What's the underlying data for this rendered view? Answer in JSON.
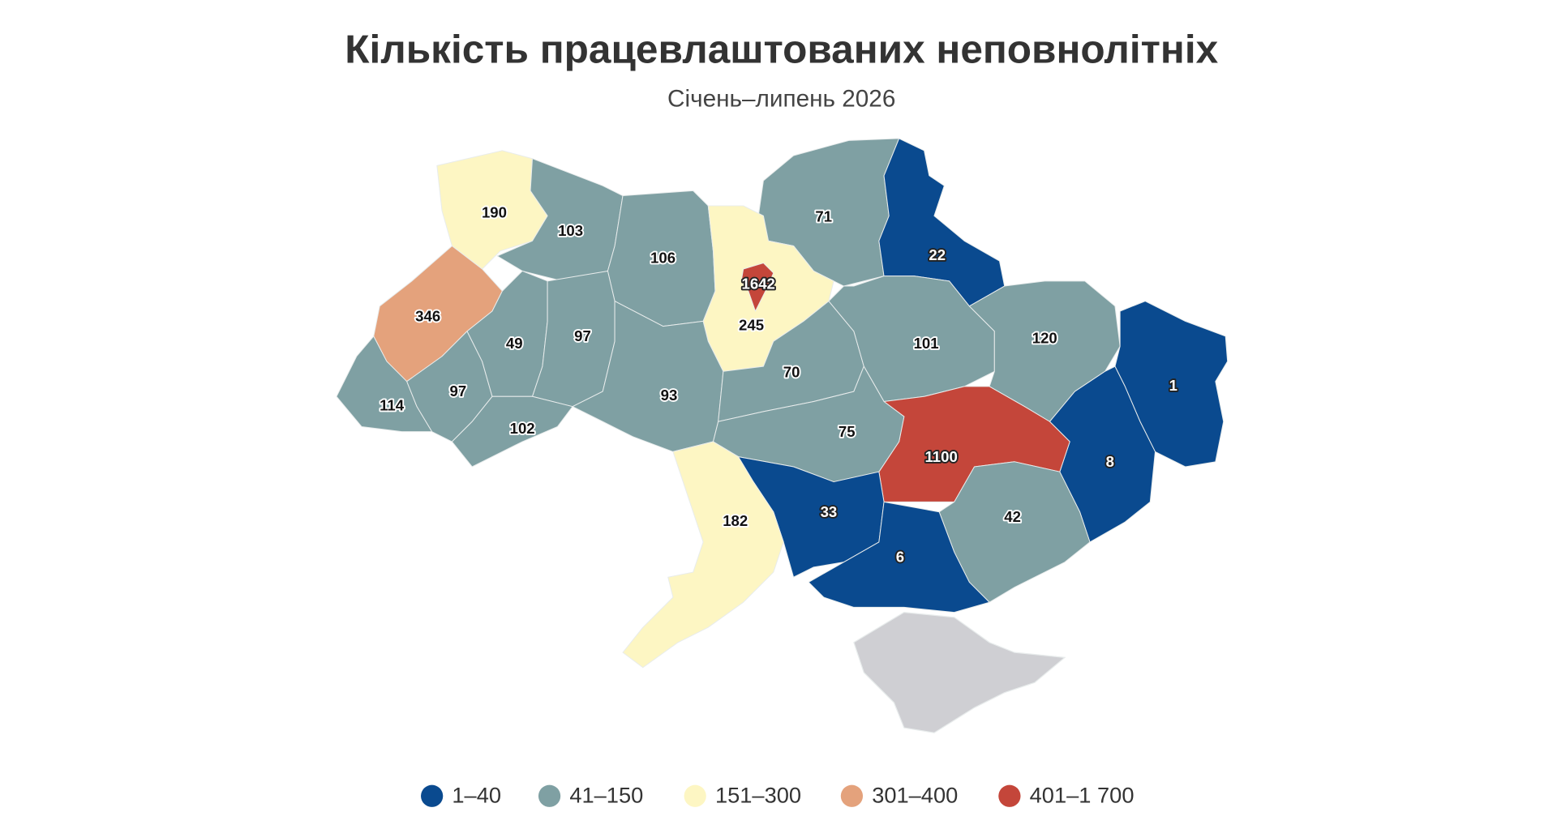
{
  "title": "Кількість працевлаштованих неповнолітніх",
  "subtitle": "Січень–липень 2026",
  "regions": [
    {
      "value": 190,
      "color": "#fdf6c3"
    },
    {
      "value": 103,
      "color": "#7fa0a3"
    },
    {
      "value": 106,
      "color": "#7fa0a3"
    },
    {
      "value": 71,
      "color": "#7fa0a3"
    },
    {
      "value": 22,
      "color": "#0a4a8f"
    },
    {
      "value": 245,
      "color": "#fdf6c3"
    },
    {
      "value": 1642,
      "color": "#c4463a"
    },
    {
      "value": 346,
      "color": "#e4a27c"
    },
    {
      "value": 114,
      "color": "#7fa0a3"
    },
    {
      "value": 97,
      "color": "#7fa0a3"
    },
    {
      "value": 49,
      "color": "#7fa0a3"
    },
    {
      "value": 97,
      "color": "#7fa0a3"
    },
    {
      "value": 102,
      "color": "#7fa0a3"
    },
    {
      "value": 93,
      "color": "#7fa0a3"
    },
    {
      "value": 70,
      "color": "#7fa0a3"
    },
    {
      "value": 101,
      "color": "#7fa0a3"
    },
    {
      "value": 120,
      "color": "#7fa0a3"
    },
    {
      "value": 1,
      "color": "#0a4a8f"
    },
    {
      "value": 8,
      "color": "#0a4a8f"
    },
    {
      "value": 1100,
      "color": "#c4463a"
    },
    {
      "value": 75,
      "color": "#7fa0a3"
    },
    {
      "value": 42,
      "color": "#7fa0a3"
    },
    {
      "value": 33,
      "color": "#0a4a8f"
    },
    {
      "value": 6,
      "color": "#0a4a8f"
    },
    {
      "value": 182,
      "color": "#fdf6c3"
    }
  ],
  "legend": [
    {
      "label": "1–40",
      "color": "#0a4a8f"
    },
    {
      "label": "41–150",
      "color": "#7fa0a3"
    },
    {
      "label": "151–300",
      "color": "#fdf6c3"
    },
    {
      "label": "301–400",
      "color": "#e4a27c"
    },
    {
      "label": "401–1 700",
      "color": "#c4463a"
    }
  ]
}
